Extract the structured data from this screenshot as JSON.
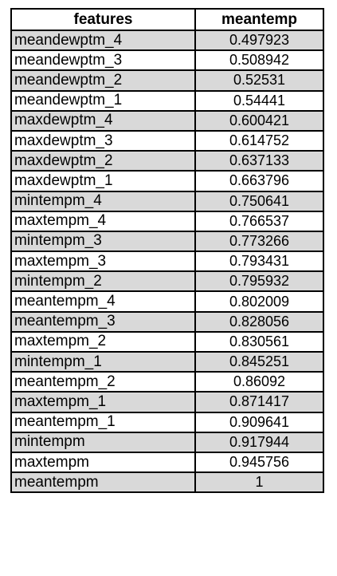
{
  "columns": [
    "features",
    "meantemp"
  ],
  "rows": [
    {
      "feature": "meandewptm_4",
      "value": "0.497923"
    },
    {
      "feature": "meandewptm_3",
      "value": "0.508942"
    },
    {
      "feature": "meandewptm_2",
      "value": "0.52531"
    },
    {
      "feature": "meandewptm_1",
      "value": "0.54441"
    },
    {
      "feature": "maxdewptm_4",
      "value": "0.600421"
    },
    {
      "feature": "maxdewptm_3",
      "value": "0.614752"
    },
    {
      "feature": "maxdewptm_2",
      "value": "0.637133"
    },
    {
      "feature": "maxdewptm_1",
      "value": "0.663796"
    },
    {
      "feature": "mintempm_4",
      "value": "0.750641"
    },
    {
      "feature": "maxtempm_4",
      "value": "0.766537"
    },
    {
      "feature": "mintempm_3",
      "value": "0.773266"
    },
    {
      "feature": "maxtempm_3",
      "value": "0.793431"
    },
    {
      "feature": "mintempm_2",
      "value": "0.795932"
    },
    {
      "feature": "meantempm_4",
      "value": "0.802009"
    },
    {
      "feature": "meantempm_3",
      "value": "0.828056"
    },
    {
      "feature": "maxtempm_2",
      "value": "0.830561"
    },
    {
      "feature": "mintempm_1",
      "value": "0.845251"
    },
    {
      "feature": "meantempm_2",
      "value": "0.86092"
    },
    {
      "feature": "maxtempm_1",
      "value": "0.871417"
    },
    {
      "feature": "meantempm_1",
      "value": "0.909641"
    },
    {
      "feature": "mintempm",
      "value": "0.917944"
    },
    {
      "feature": "maxtempm",
      "value": "0.945756"
    },
    {
      "feature": "meantempm",
      "value": "1"
    }
  ],
  "colors": {
    "shade": "#d9d9d9",
    "plain": "#ffffff",
    "border": "#000000"
  }
}
